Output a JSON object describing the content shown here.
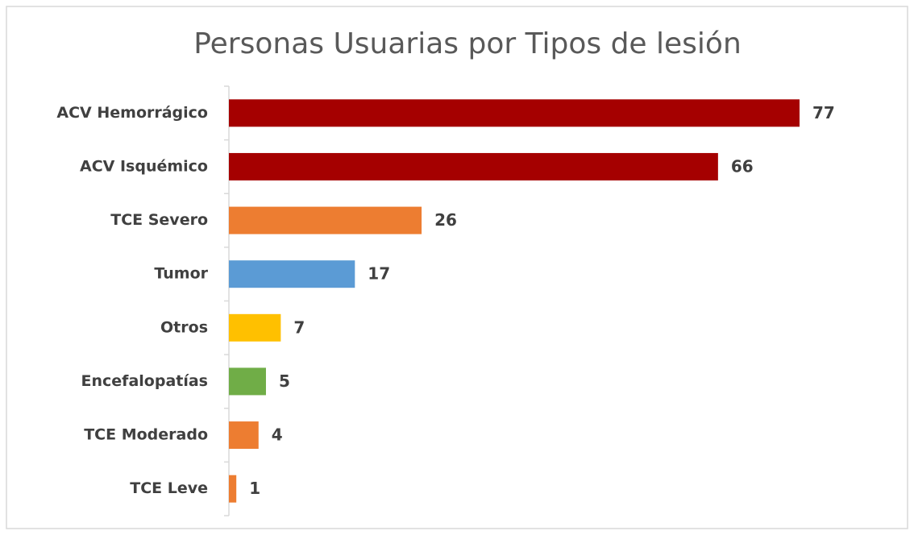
{
  "chart_data": {
    "type": "bar",
    "orientation": "horizontal",
    "title": "Personas Usuarias por Tipos de lesión",
    "categories": [
      "ACV Hemorrágico",
      "ACV Isquémico",
      "TCE Severo",
      "Tumor",
      "Otros",
      "Encefalopatías",
      "TCE Moderado",
      "TCE Leve"
    ],
    "values": [
      77,
      66,
      26,
      17,
      7,
      5,
      4,
      1
    ],
    "colors": [
      "#a50000",
      "#a50000",
      "#ed7d31",
      "#5b9bd5",
      "#ffc000",
      "#70ad47",
      "#ed7d31",
      "#ed7d31"
    ]
  }
}
